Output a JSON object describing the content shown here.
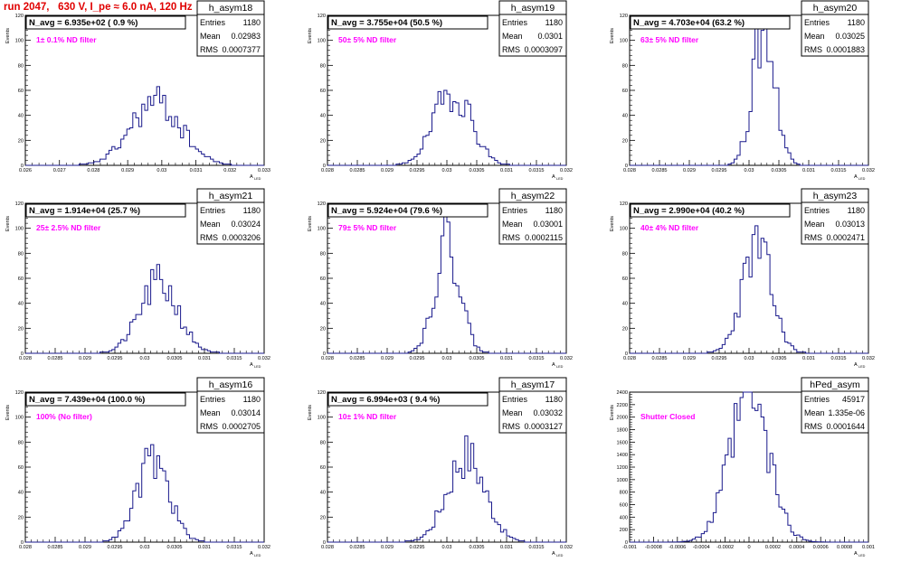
{
  "title": "run 2047,   630 V, I_pe ≈ 6.0 nA, 120 Hz",
  "colors": {
    "hist": "#1a1a8c",
    "title_text": "#e00000",
    "filter_text": "#ff00ff",
    "frame": "#000000"
  },
  "stat_labels": {
    "entries": "Entries",
    "mean": "Mean",
    "rms": "RMS"
  },
  "y_axis_label": "Events",
  "x_axis_label": "A",
  "x_axis_sub": "LED",
  "chart_data": [
    {
      "type": "histogram",
      "name": "h_asym18",
      "navg": "N_avg = 6.935e+02 ( 0.9 %)",
      "filter": "1± 0.1% ND filter",
      "entries": "1180",
      "mean": "0.02983",
      "rms": "0.0007377",
      "xlim": [
        0.026,
        0.033
      ],
      "ylim": [
        0,
        120
      ],
      "xticks": [
        "0.026",
        "0.027",
        "0.028",
        "0.029",
        "0.03",
        "0.031",
        "0.032",
        "0.033"
      ],
      "yticks": [
        "0",
        "20",
        "40",
        "60",
        "80",
        "100",
        "120"
      ],
      "mu": 0.02983,
      "sigma": 0.0007377,
      "peak": 50,
      "seed": 18
    },
    {
      "type": "histogram",
      "name": "h_asym19",
      "navg": "N_avg = 3.755e+04 (50.5 %)",
      "filter": "50± 5% ND filter",
      "entries": "1180",
      "mean": "0.0301",
      "rms": "0.0003097",
      "xlim": [
        0.028,
        0.032
      ],
      "ylim": [
        0,
        120
      ],
      "xticks": [
        "0.028",
        "0.0285",
        "0.029",
        "0.0295",
        "0.03",
        "0.0305",
        "0.031",
        "0.0315",
        "0.032"
      ],
      "yticks": [
        "0",
        "20",
        "40",
        "60",
        "80",
        "100",
        "120"
      ],
      "mu": 0.0301,
      "sigma": 0.0003097,
      "peak": 60,
      "seed": 19
    },
    {
      "type": "histogram",
      "name": "h_asym20",
      "navg": "N_avg = 4.703e+04 (63.2 %)",
      "filter": "63± 5% ND filter",
      "entries": "1180",
      "mean": "0.03025",
      "rms": "0.0001883",
      "xlim": [
        0.028,
        0.032
      ],
      "ylim": [
        0,
        120
      ],
      "xticks": [
        "0.028",
        "0.0285",
        "0.029",
        "0.0295",
        "0.03",
        "0.0305",
        "0.031",
        "0.0315",
        "0.032"
      ],
      "yticks": [
        "0",
        "20",
        "40",
        "60",
        "80",
        "100",
        "120"
      ],
      "mu": 0.03025,
      "sigma": 0.0001883,
      "peak": 108,
      "seed": 20
    },
    {
      "type": "histogram",
      "name": "h_asym21",
      "navg": "N_avg = 1.914e+04 (25.7 %)",
      "filter": "25± 2.5% ND filter",
      "entries": "1180",
      "mean": "0.03024",
      "rms": "0.0003206",
      "xlim": [
        0.028,
        0.032
      ],
      "ylim": [
        0,
        120
      ],
      "xticks": [
        "0.028",
        "0.0285",
        "0.029",
        "0.0295",
        "0.03",
        "0.0305",
        "0.031",
        "0.0315",
        "0.032"
      ],
      "yticks": [
        "0",
        "20",
        "40",
        "60",
        "80",
        "100",
        "120"
      ],
      "mu": 0.03024,
      "sigma": 0.0003206,
      "peak": 56,
      "seed": 21
    },
    {
      "type": "histogram",
      "name": "h_asym22",
      "navg": "N_avg = 5.924e+04 (79.6 %)",
      "filter": "79± 5% ND filter",
      "entries": "1180",
      "mean": "0.03001",
      "rms": "0.0002115",
      "xlim": [
        0.028,
        0.032
      ],
      "ylim": [
        0,
        120
      ],
      "xticks": [
        "0.028",
        "0.0285",
        "0.029",
        "0.0295",
        "0.03",
        "0.0305",
        "0.031",
        "0.0315",
        "0.032"
      ],
      "yticks": [
        "0",
        "20",
        "40",
        "60",
        "80",
        "100",
        "120"
      ],
      "mu": 0.03001,
      "sigma": 0.0002115,
      "peak": 90,
      "seed": 22
    },
    {
      "type": "histogram",
      "name": "h_asym23",
      "navg": "N_avg = 2.990e+04 (40.2 %)",
      "filter": "40± 4% ND filter",
      "entries": "1180",
      "mean": "0.03013",
      "rms": "0.0002471",
      "xlim": [
        0.028,
        0.032
      ],
      "ylim": [
        0,
        120
      ],
      "xticks": [
        "0.028",
        "0.0285",
        "0.029",
        "0.0295",
        "0.03",
        "0.0305",
        "0.031",
        "0.0315",
        "0.032"
      ],
      "yticks": [
        "0",
        "20",
        "40",
        "60",
        "80",
        "100",
        "120"
      ],
      "mu": 0.03013,
      "sigma": 0.0002471,
      "peak": 85,
      "seed": 23
    },
    {
      "type": "histogram",
      "name": "h_asym16",
      "navg": "N_avg = 7.439e+04 (100.0 %)",
      "filter": "100% (No filter)",
      "entries": "1180",
      "mean": "0.03014",
      "rms": "0.0002705",
      "xlim": [
        0.028,
        0.032
      ],
      "ylim": [
        0,
        120
      ],
      "xticks": [
        "0.028",
        "0.0285",
        "0.029",
        "0.0295",
        "0.03",
        "0.0305",
        "0.031",
        "0.0315",
        "0.032"
      ],
      "yticks": [
        "0",
        "20",
        "40",
        "60",
        "80",
        "100",
        "120"
      ],
      "mu": 0.03014,
      "sigma": 0.0002705,
      "peak": 65,
      "seed": 16
    },
    {
      "type": "histogram",
      "name": "h_asym17",
      "navg": "N_avg = 6.994e+03 ( 9.4 %)",
      "filter": "10± 1% ND filter",
      "entries": "1180",
      "mean": "0.03032",
      "rms": "0.0003127",
      "xlim": [
        0.028,
        0.032
      ],
      "ylim": [
        0,
        120
      ],
      "xticks": [
        "0.028",
        "0.0285",
        "0.029",
        "0.0295",
        "0.03",
        "0.0305",
        "0.031",
        "0.0315",
        "0.032"
      ],
      "yticks": [
        "0",
        "20",
        "40",
        "60",
        "80",
        "100",
        "120"
      ],
      "mu": 0.03032,
      "sigma": 0.0003127,
      "peak": 70,
      "seed": 17
    },
    {
      "type": "histogram",
      "name": "hPed_asym",
      "navg": "",
      "filter": "Shutter Closed",
      "entries": "45917",
      "mean": "1.335e-06",
      "rms": "0.0001644",
      "xlim": [
        -0.001,
        0.001
      ],
      "ylim": [
        0,
        2400
      ],
      "xticks": [
        "-0.001",
        "-0.0008",
        "-0.0006",
        "-0.0004",
        "-0.0002",
        "0",
        "0.0002",
        "0.0004",
        "0.0006",
        "0.0008",
        "0.001"
      ],
      "yticks": [
        "0",
        "200",
        "400",
        "600",
        "800",
        "1000",
        "1200",
        "1400",
        "1600",
        "1800",
        "2000",
        "2200",
        "2400"
      ],
      "mu": 1.34e-06,
      "sigma": 0.0001644,
      "peak": 2280,
      "seed": 99
    }
  ]
}
